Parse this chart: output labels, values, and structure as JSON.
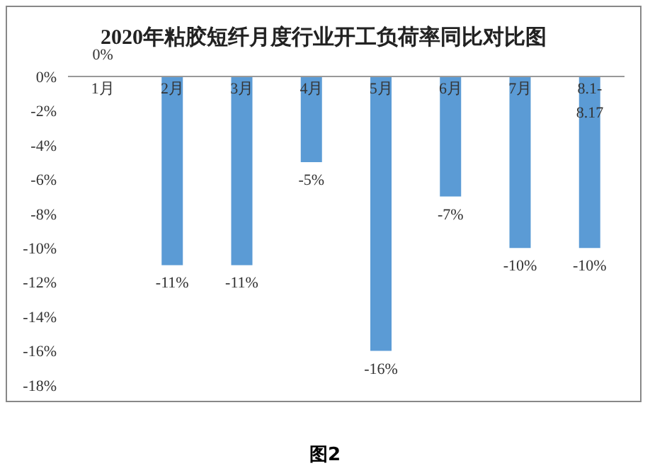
{
  "chart_data": {
    "type": "bar",
    "title": "2020年粘胶短纤月度行业开工负荷率同比对比图",
    "categories": [
      "1月",
      "2月",
      "3月",
      "4月",
      "5月",
      "6月",
      "7月",
      "8.1-8.17"
    ],
    "values": [
      0,
      -11,
      -11,
      -5,
      -16,
      -7,
      -10,
      -10
    ],
    "value_labels": [
      "0%",
      "-11%",
      "-11%",
      "-5%",
      "-16%",
      "-7%",
      "-10%",
      "-10%"
    ],
    "color": "#5b9bd5",
    "ylim": [
      -18,
      0
    ],
    "yticks": [
      {
        "value": 0,
        "label": "0%"
      },
      {
        "value": -2,
        "label": "-2%"
      },
      {
        "value": -4,
        "label": "-4%"
      },
      {
        "value": -6,
        "label": "-6%"
      },
      {
        "value": -8,
        "label": "-8%"
      },
      {
        "value": -10,
        "label": "-10%"
      },
      {
        "value": -12,
        "label": "-12%"
      },
      {
        "value": -14,
        "label": "-14%"
      },
      {
        "value": -16,
        "label": "-16%"
      },
      {
        "value": -18,
        "label": "-18%"
      }
    ],
    "grid": false,
    "legend": false,
    "annotations": [
      "图2"
    ]
  }
}
